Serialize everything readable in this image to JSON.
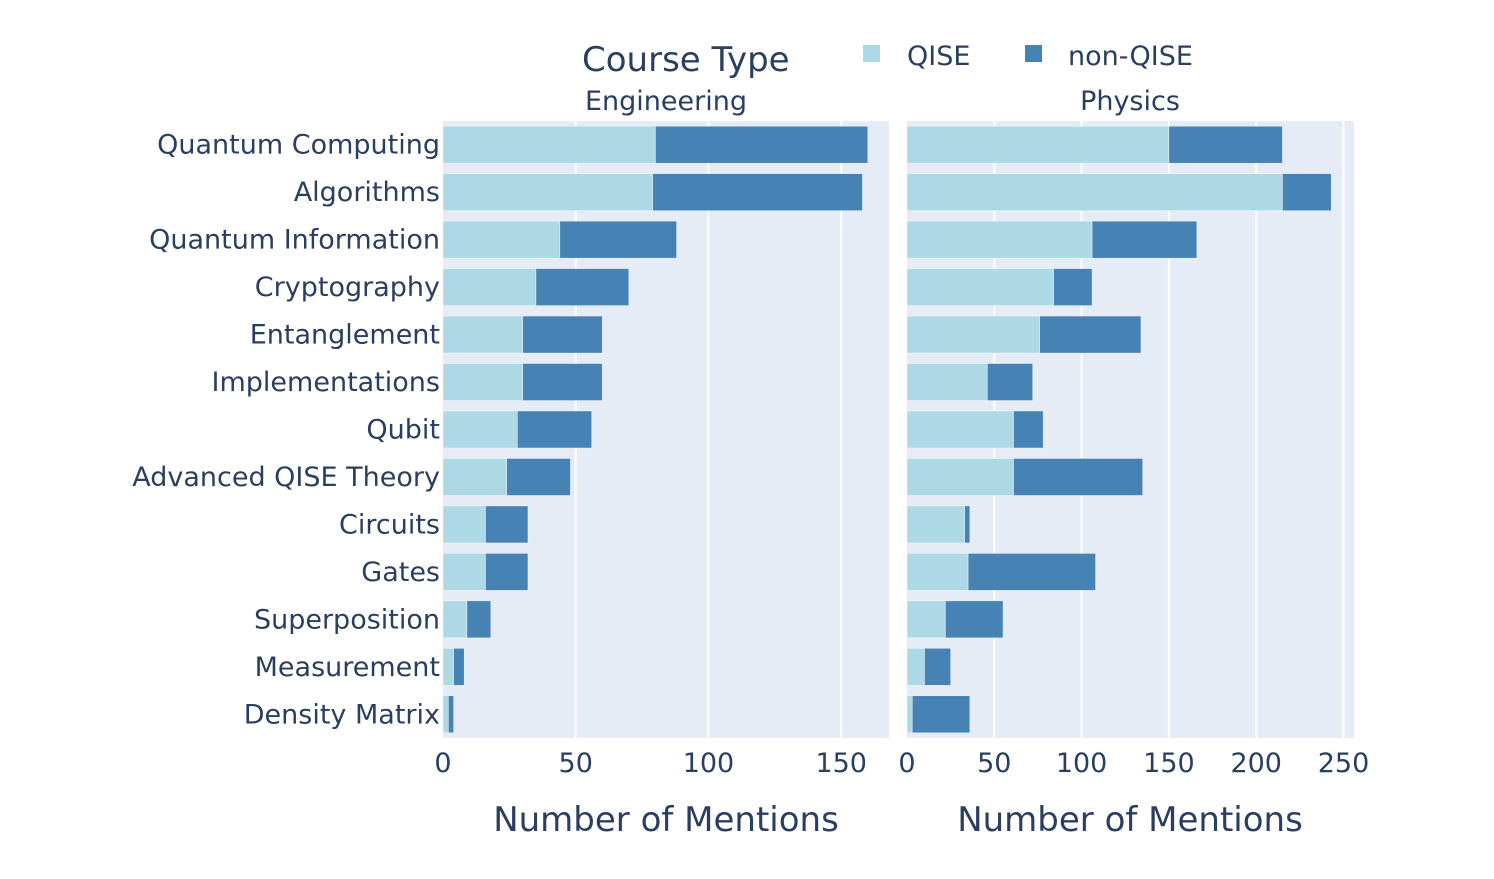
{
  "chart_data": {
    "type": "bar",
    "orientation": "horizontal",
    "barmode": "stack",
    "legend": {
      "title": "Course Type",
      "placement": "top-center",
      "items": [
        {
          "name": "QISE",
          "color": "#ADD8E6"
        },
        {
          "name": "non-QISE",
          "color": "#4682B4"
        }
      ]
    },
    "categories": [
      "Quantum Computing",
      "Algorithms",
      "Quantum Information",
      "Cryptography",
      "Entanglement",
      "Implementations",
      "Qubit",
      "Advanced QISE Theory",
      "Circuits",
      "Gates",
      "Superposition",
      "Measurement",
      "Density Matrix"
    ],
    "panels": [
      {
        "title": "Engineering",
        "xlabel": "Number of Mentions",
        "xlim": [
          0,
          168
        ],
        "xticks": [
          0,
          50,
          100,
          150
        ],
        "tick_labels": [
          "0",
          "50",
          "100",
          "150"
        ],
        "grid": true,
        "series": [
          {
            "name": "QISE",
            "values": [
              80,
              79,
              44,
              35,
              30,
              30,
              28,
              24,
              16,
              16,
              9,
              4,
              2
            ]
          },
          {
            "name": "non-QISE",
            "values": [
              80,
              79,
              44,
              35,
              30,
              30,
              28,
              24,
              16,
              16,
              9,
              4,
              2
            ]
          }
        ]
      },
      {
        "title": "Physics",
        "xlabel": "Number of Mentions",
        "xlim": [
          0,
          256
        ],
        "xticks": [
          0,
          50,
          100,
          150,
          200,
          250
        ],
        "tick_labels": [
          "0",
          "50",
          "100",
          "150",
          "200",
          "250"
        ],
        "grid": true,
        "series": [
          {
            "name": "QISE",
            "values": [
              150,
              215,
              106,
              84,
              76,
              46,
              61,
              61,
              33,
              35,
              22,
              10,
              3
            ]
          },
          {
            "name": "non-QISE",
            "values": [
              65,
              28,
              60,
              22,
              58,
              26,
              17,
              74,
              3,
              73,
              33,
              15,
              33
            ]
          }
        ]
      }
    ],
    "colors": {
      "plot_background": "#E5ECF6",
      "grid": "#FFFFFF",
      "text": "#2A3F5F"
    }
  }
}
